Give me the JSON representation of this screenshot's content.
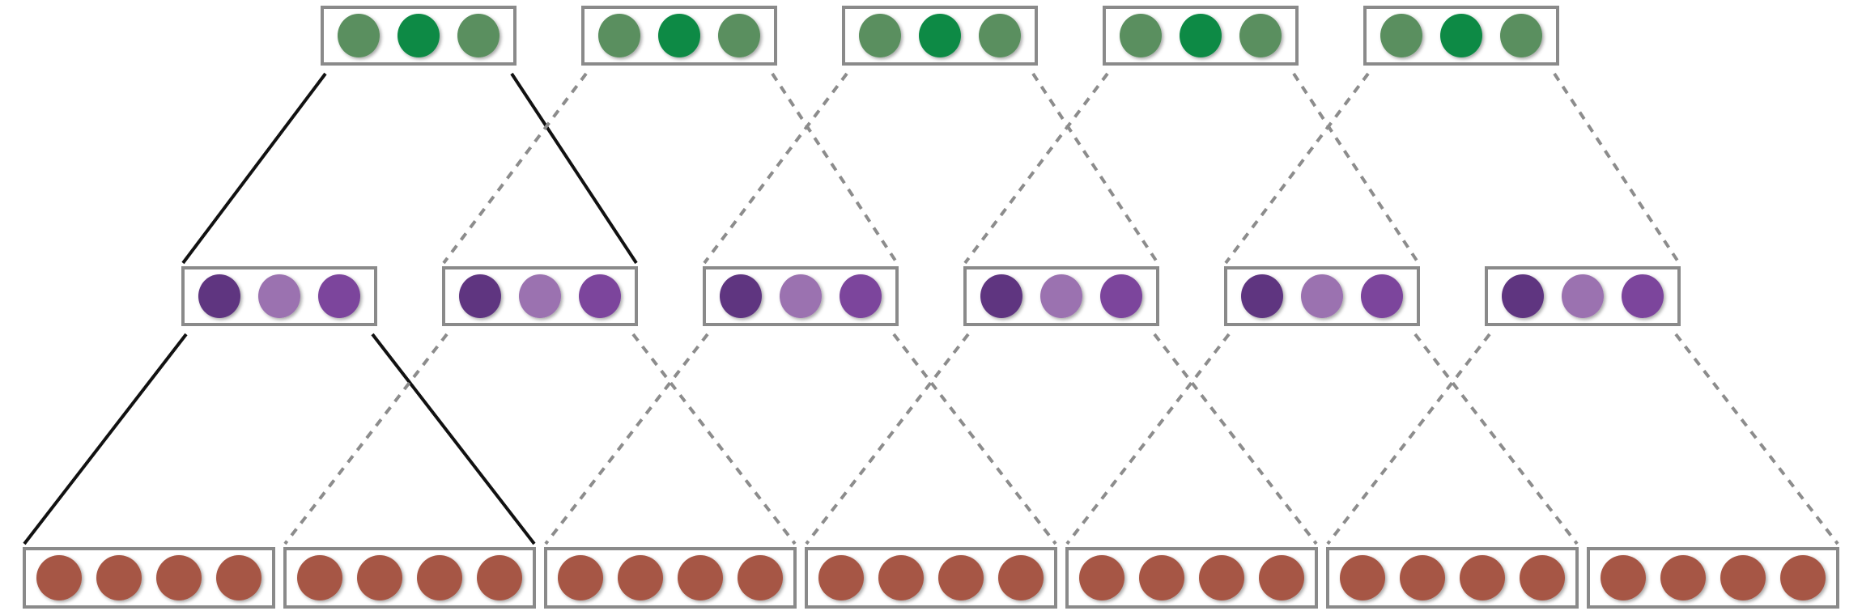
{
  "diagram": {
    "type": "hierarchical-receptive-field-diagram",
    "layers": [
      {
        "name": "top",
        "box_count": 5,
        "units_per_box": 3,
        "unit_colors": [
          "#5a8f5e",
          "#0a8a45",
          "#5a8f5e"
        ]
      },
      {
        "name": "middle",
        "box_count": 6,
        "units_per_box": 3,
        "unit_colors": [
          "#5e3580",
          "#9b72b0",
          "#7b449c"
        ]
      },
      {
        "name": "bottom",
        "box_count": 7,
        "units_per_box": 4,
        "unit_colors": [
          "#a65744",
          "#a65744",
          "#a65744",
          "#a65744"
        ]
      }
    ],
    "connections": [
      {
        "from_layer": "top",
        "from_box": 0,
        "to_layer": "middle",
        "to_boxes": [
          0,
          1
        ],
        "style": "solid"
      },
      {
        "from_layer": "top",
        "from_box": 1,
        "to_layer": "middle",
        "to_boxes": [
          1,
          2
        ],
        "style": "dashed"
      },
      {
        "from_layer": "top",
        "from_box": 2,
        "to_layer": "middle",
        "to_boxes": [
          2,
          3
        ],
        "style": "dashed"
      },
      {
        "from_layer": "top",
        "from_box": 3,
        "to_layer": "middle",
        "to_boxes": [
          3,
          4
        ],
        "style": "dashed"
      },
      {
        "from_layer": "top",
        "from_box": 4,
        "to_layer": "middle",
        "to_boxes": [
          4,
          5
        ],
        "style": "dashed"
      },
      {
        "from_layer": "middle",
        "from_box": 0,
        "to_layer": "bottom",
        "to_boxes": [
          0,
          1
        ],
        "style": "solid"
      },
      {
        "from_layer": "middle",
        "from_box": 1,
        "to_layer": "bottom",
        "to_boxes": [
          1,
          2
        ],
        "style": "dashed"
      },
      {
        "from_layer": "middle",
        "from_box": 2,
        "to_layer": "bottom",
        "to_boxes": [
          2,
          3
        ],
        "style": "dashed"
      },
      {
        "from_layer": "middle",
        "from_box": 3,
        "to_layer": "bottom",
        "to_boxes": [
          3,
          4
        ],
        "style": "dashed"
      },
      {
        "from_layer": "middle",
        "from_box": 4,
        "to_layer": "bottom",
        "to_boxes": [
          4,
          5
        ],
        "style": "dashed"
      },
      {
        "from_layer": "middle",
        "from_box": 5,
        "to_layer": "bottom",
        "to_boxes": [
          5,
          6
        ],
        "style": "dashed"
      }
    ],
    "colors": {
      "box_border": "#8a8a8a",
      "solid_line": "#111111",
      "dashed_line": "#8c8c8c"
    }
  }
}
